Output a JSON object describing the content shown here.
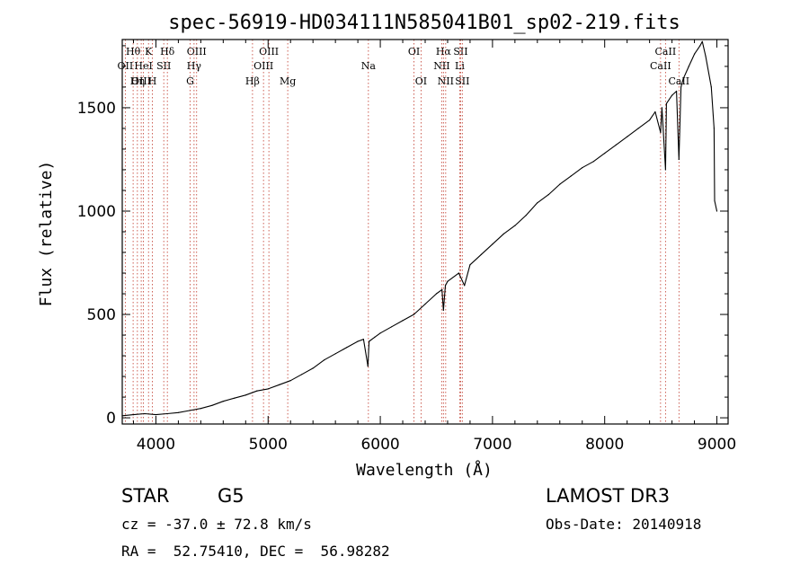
{
  "chart_data": {
    "type": "line",
    "title": "spec-56919-HD034111N585041B01_sp02-219.fits",
    "xlabel": "Wavelength (Å)",
    "ylabel": "Flux (relative)",
    "xlim": [
      3700,
      9100
    ],
    "ylim": [
      -30,
      1830
    ],
    "x_ticks": [
      4000,
      5000,
      6000,
      7000,
      8000,
      9000
    ],
    "y_ticks": [
      0,
      500,
      1000,
      1500
    ],
    "x_tick_labels": [
      "4000",
      "5000",
      "6000",
      "7000",
      "8000",
      "9000"
    ],
    "y_tick_labels": [
      "0",
      "500",
      "1000",
      "1500"
    ],
    "series": [
      {
        "name": "flux",
        "x": [
          3700,
          3800,
          3900,
          4000,
          4100,
          4200,
          4300,
          4400,
          4500,
          4600,
          4700,
          4800,
          4900,
          5000,
          5100,
          5200,
          5300,
          5400,
          5500,
          5600,
          5700,
          5800,
          5850,
          5890,
          5900,
          5950,
          6000,
          6100,
          6200,
          6300,
          6400,
          6500,
          6550,
          6563,
          6580,
          6600,
          6700,
          6750,
          6800,
          6900,
          7000,
          7100,
          7200,
          7300,
          7400,
          7500,
          7600,
          7700,
          7800,
          7900,
          8000,
          8100,
          8200,
          8300,
          8400,
          8450,
          8498,
          8510,
          8542,
          8550,
          8600,
          8640,
          8662,
          8680,
          8700,
          8750,
          8800,
          8850,
          8870,
          8900,
          8950,
          8975,
          8980,
          9000
        ],
        "y": [
          10,
          15,
          20,
          15,
          20,
          25,
          35,
          45,
          60,
          80,
          95,
          110,
          130,
          140,
          160,
          180,
          210,
          240,
          280,
          310,
          340,
          370,
          380,
          250,
          370,
          390,
          410,
          440,
          470,
          500,
          550,
          600,
          620,
          520,
          640,
          660,
          700,
          640,
          740,
          790,
          840,
          890,
          930,
          980,
          1040,
          1080,
          1130,
          1170,
          1210,
          1240,
          1280,
          1320,
          1360,
          1400,
          1440,
          1480,
          1380,
          1500,
          1200,
          1520,
          1560,
          1580,
          1250,
          1600,
          1640,
          1700,
          1760,
          1800,
          1820,
          1750,
          1600,
          1400,
          1050,
          1000
        ]
      }
    ],
    "line_annotations": [
      {
        "label": "Hθ",
        "x": 3797,
        "row": 1
      },
      {
        "label": "OII",
        "x": 3727,
        "row": 2
      },
      {
        "label": "OIII",
        "x": 3869,
        "row": 3
      },
      {
        "label": "K",
        "x": 3934,
        "row": 1
      },
      {
        "label": "H",
        "x": 3969,
        "row": 3
      },
      {
        "label": "HeI",
        "x": 3889,
        "row": 2
      },
      {
        "label": "Hη",
        "x": 3835,
        "row": 3
      },
      {
        "label": "SII",
        "x": 4070,
        "row": 2
      },
      {
        "label": "Hδ",
        "x": 4102,
        "row": 1
      },
      {
        "label": "OIII",
        "x": 4363,
        "row": 1
      },
      {
        "label": "Hγ",
        "x": 4340,
        "row": 2
      },
      {
        "label": "G",
        "x": 4305,
        "row": 3
      },
      {
        "label": "OIII",
        "x": 5007,
        "row": 1
      },
      {
        "label": "OIII",
        "x": 4959,
        "row": 2
      },
      {
        "label": "Hβ",
        "x": 4861,
        "row": 3
      },
      {
        "label": "Mg",
        "x": 5175,
        "row": 3
      },
      {
        "label": "Na",
        "x": 5894,
        "row": 2
      },
      {
        "label": "OI",
        "x": 6300,
        "row": 1
      },
      {
        "label": "OI",
        "x": 6363,
        "row": 3
      },
      {
        "label": "Hα",
        "x": 6563,
        "row": 1
      },
      {
        "label": "NII",
        "x": 6548,
        "row": 2
      },
      {
        "label": "NII",
        "x": 6583,
        "row": 3
      },
      {
        "label": "SII",
        "x": 6716,
        "row": 1
      },
      {
        "label": "Li",
        "x": 6708,
        "row": 2
      },
      {
        "label": "SII",
        "x": 6731,
        "row": 3
      },
      {
        "label": "CaII",
        "x": 8542,
        "row": 1
      },
      {
        "label": "CaII",
        "x": 8498,
        "row": 2
      },
      {
        "label": "CaII",
        "x": 8662,
        "row": 3
      }
    ]
  },
  "info": {
    "object_class": "STAR",
    "subclass": "G5",
    "survey": "LAMOST DR3",
    "cz": "cz = -37.0 ± 72.8 km/s",
    "obs_date": "Obs-Date: 20140918",
    "coords": "RA =  52.75410, DEC =  56.98282"
  }
}
